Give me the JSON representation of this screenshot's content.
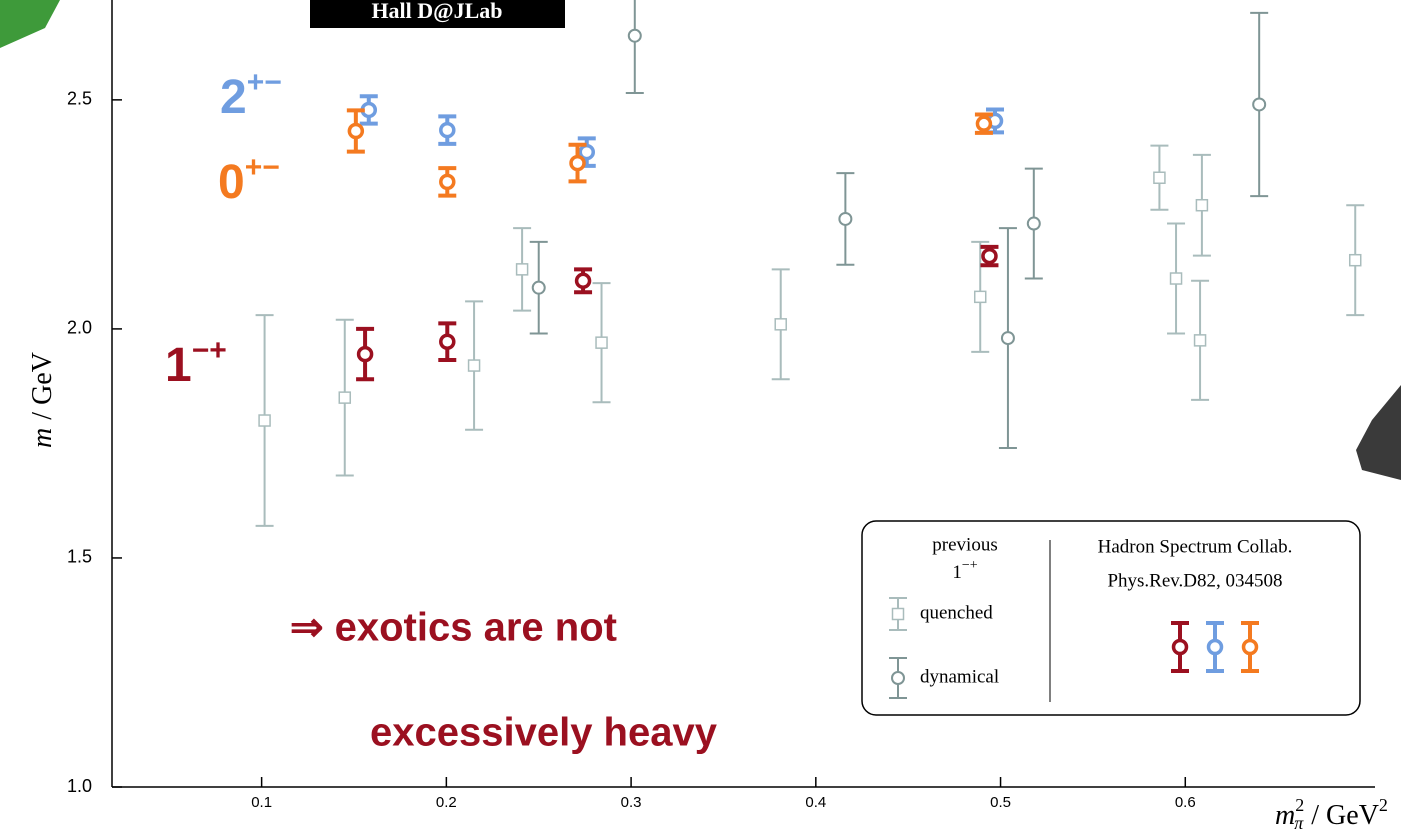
{
  "chart_data": {
    "type": "errorbar",
    "banner": "Hall D@JLab",
    "xlabel": {
      "symbol": "m",
      "sub": "π",
      "sup": "2",
      "unit": "/ GeV",
      "unit_sup": "2"
    },
    "ylabel": {
      "symbol": "m",
      "unit": "/ GeV"
    },
    "xlim": [
      0.019,
      0.7027
    ],
    "ylim": [
      1.0,
      2.718
    ],
    "xticks": [
      0.1,
      0.2,
      0.3,
      0.4,
      0.5,
      0.6
    ],
    "yticks": [
      {
        "value": 1,
        "label": "1.0"
      },
      1.5,
      {
        "value": 2,
        "label": "2.0"
      },
      2.5
    ],
    "annotations": [
      "⇒ exotics are not",
      "excessively heavy"
    ],
    "legend": {
      "previous": "previous",
      "previous_label": {
        "base": "1",
        "sup": "−+"
      },
      "source": "Hadron Spectrum Collab.",
      "reference": "Phys.Rev.D82, 034508"
    },
    "series": [
      {
        "name": "quenched",
        "marker": "square",
        "color": "#a9bcbc",
        "x": [
          0.1016,
          0.145,
          0.215,
          0.241,
          0.284,
          0.381,
          0.489,
          0.586,
          0.595,
          0.609,
          0.608,
          0.692
        ],
        "values": [
          1.8,
          1.85,
          1.92,
          2.13,
          1.97,
          2.01,
          2.07,
          2.33,
          2.11,
          2.27,
          1.975,
          2.15
        ],
        "errors": [
          0.23,
          0.17,
          0.14,
          0.09,
          0.13,
          0.12,
          0.12,
          0.07,
          0.12,
          0.11,
          0.13,
          0.12
        ]
      },
      {
        "name": "dynamical",
        "marker": "circle",
        "color": "#7f9595",
        "x": [
          0.25,
          0.302,
          0.416,
          0.504,
          0.518,
          0.64
        ],
        "values": [
          2.09,
          2.64,
          2.24,
          1.98,
          2.23,
          2.49
        ],
        "errors": [
          0.1,
          0.125,
          0.1,
          0.24,
          0.12,
          0.2
        ]
      },
      {
        "label": {
          "base": "1",
          "sup": "−+"
        },
        "marker": "ring",
        "color": "#9b1020",
        "x": [
          0.156,
          0.2005,
          0.274,
          0.494
        ],
        "values": [
          1.945,
          1.972,
          2.105,
          2.159
        ],
        "errors": [
          0.055,
          0.04,
          0.025,
          0.02
        ]
      },
      {
        "label": {
          "base": "2",
          "sup": "+−"
        },
        "marker": "ring",
        "color": "#6f9de0",
        "x": [
          0.158,
          0.2005,
          0.276,
          0.497
        ],
        "values": [
          2.478,
          2.434,
          2.386,
          2.454
        ],
        "errors": [
          0.03,
          0.03,
          0.03,
          0.025
        ]
      },
      {
        "label": {
          "base": "0",
          "sup": "+−"
        },
        "marker": "ring",
        "color": "#f47a20",
        "x": [
          0.151,
          0.2005,
          0.271,
          0.491
        ],
        "values": [
          2.432,
          2.321,
          2.362,
          2.448
        ],
        "errors": [
          0.045,
          0.03,
          0.04,
          0.02
        ]
      }
    ]
  }
}
